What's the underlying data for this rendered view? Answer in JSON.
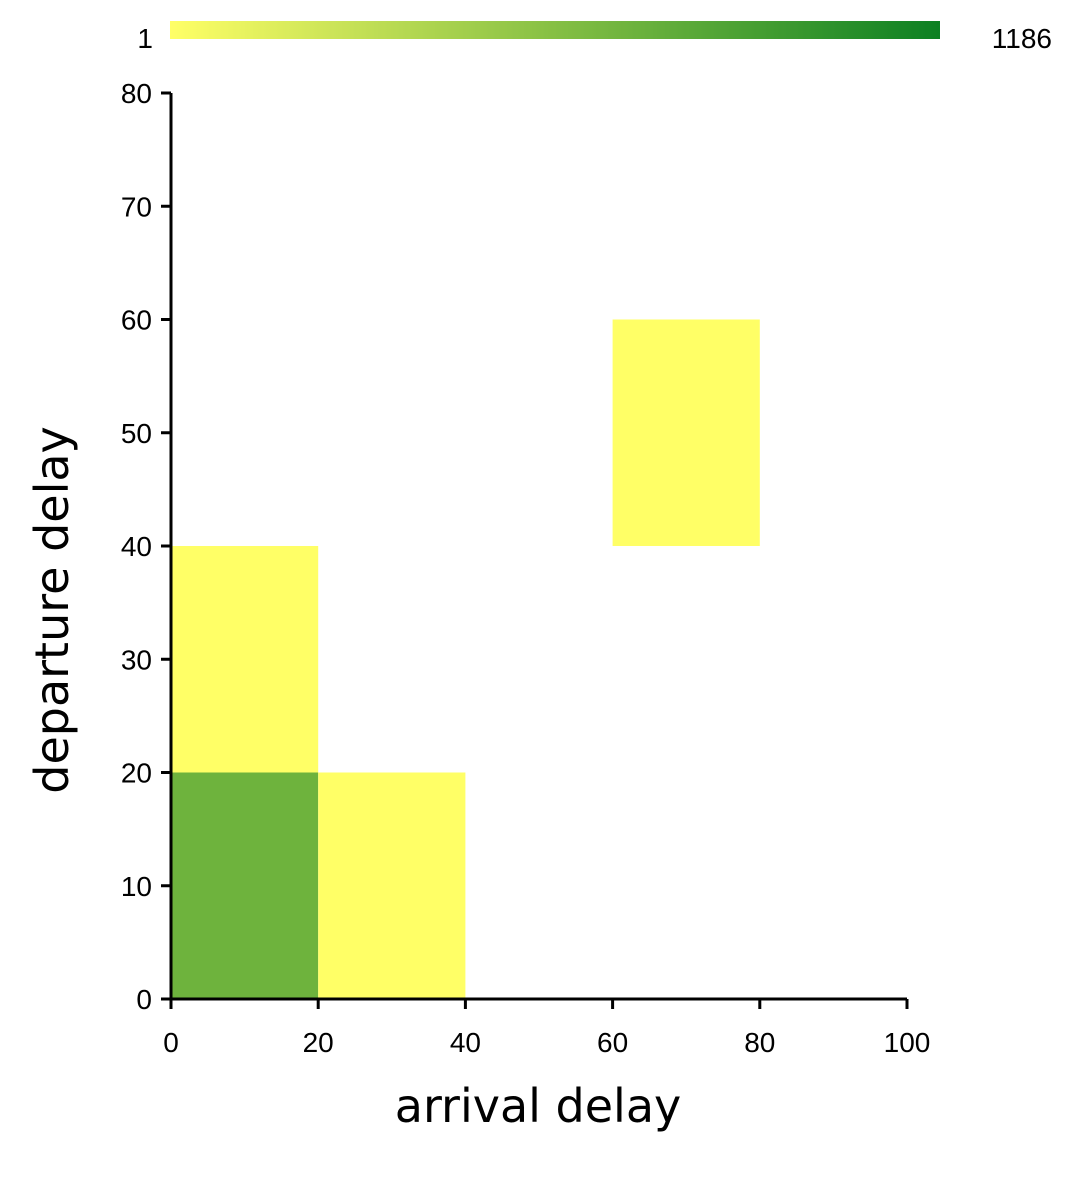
{
  "chart_data": {
    "type": "heatmap",
    "title": "",
    "xlabel": "arrival delay",
    "ylabel": "departure delay",
    "xlim": [
      0,
      100
    ],
    "ylim": [
      0,
      80
    ],
    "x_ticks": [
      "0",
      "20",
      "40",
      "60",
      "80",
      "100"
    ],
    "y_ticks": [
      "0",
      "10",
      "20",
      "30",
      "40",
      "50",
      "60",
      "70",
      "80"
    ],
    "x_tick_values": [
      0,
      20,
      40,
      60,
      80,
      100
    ],
    "y_tick_values": [
      0,
      10,
      20,
      30,
      40,
      50,
      60,
      70,
      80
    ],
    "grid": false,
    "color_scale": {
      "min_label": "1",
      "max_label": "1186",
      "min": 1,
      "max": 1186,
      "min_color": "#ffff66",
      "max_color": "#0c8022",
      "position": "top"
    },
    "cells": [
      {
        "x0": 0,
        "x1": 20,
        "y0": 0,
        "y1": 20,
        "count": 710
      },
      {
        "x0": 0,
        "x1": 20,
        "y0": 20,
        "y1": 40,
        "count": 1
      },
      {
        "x0": 20,
        "x1": 40,
        "y0": 0,
        "y1": 20,
        "count": 1
      },
      {
        "x0": 60,
        "x1": 80,
        "y0": 40,
        "y1": 60,
        "count": 1
      }
    ]
  }
}
